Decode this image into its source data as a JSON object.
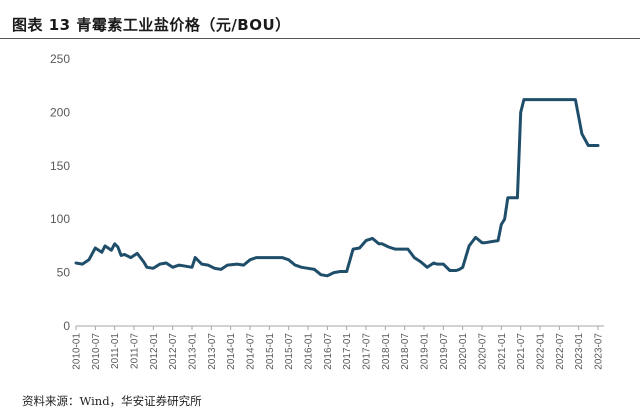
{
  "title": "图表 13 青霉素工业盐价格（元/BOU）",
  "source": "资料来源：Wind，华安证券研究所",
  "chart_data": {
    "type": "line",
    "title": "图表 13 青霉素工业盐价格（元/BOU）",
    "xlabel": "",
    "ylabel": "",
    "ylim": [
      0,
      250
    ],
    "yticks": [
      0,
      50,
      100,
      150,
      200,
      250
    ],
    "grid": false,
    "legend": "none",
    "line_color": "#1f4e6b",
    "x_ticks": [
      "2010-01",
      "2010-07",
      "2011-01",
      "2011-07",
      "2012-01",
      "2012-07",
      "2013-01",
      "2013-07",
      "2014-01",
      "2014-07",
      "2015-01",
      "2015-07",
      "2016-01",
      "2016-07",
      "2017-01",
      "2017-07",
      "2018-01",
      "2018-07",
      "2019-01",
      "2019-07",
      "2020-01",
      "2020-07",
      "2021-01",
      "2021-07",
      "2022-01",
      "2022-07",
      "2023-01",
      "2023-07"
    ],
    "x_range": [
      "2010-01",
      "2023-07"
    ],
    "series": [
      {
        "x": [
          "2010-01",
          "2010-03",
          "2010-05",
          "2010-07",
          "2010-09",
          "2010-10",
          "2010-12",
          "2011-01",
          "2011-02",
          "2011-03",
          "2011-04",
          "2011-06",
          "2011-08",
          "2011-10",
          "2011-11",
          "2012-01",
          "2012-03",
          "2012-05",
          "2012-07",
          "2012-09",
          "2012-11",
          "2013-01",
          "2013-02",
          "2013-04",
          "2013-06",
          "2013-08",
          "2013-10",
          "2013-12",
          "2014-03",
          "2014-05",
          "2014-07",
          "2014-09",
          "2014-11",
          "2015-01",
          "2015-03",
          "2015-05",
          "2015-07",
          "2015-09",
          "2015-11",
          "2016-01",
          "2016-03",
          "2016-05",
          "2016-07",
          "2016-09",
          "2016-11",
          "2017-01",
          "2017-03",
          "2017-05",
          "2017-07",
          "2017-09",
          "2017-11",
          "2017-12",
          "2018-02",
          "2018-04",
          "2018-06",
          "2018-08",
          "2018-10",
          "2018-12",
          "2019-02",
          "2019-04",
          "2019-05",
          "2019-07",
          "2019-09",
          "2019-11",
          "2019-12",
          "2020-01",
          "2020-03",
          "2020-05",
          "2020-07",
          "2020-08",
          "2020-10",
          "2020-12",
          "2021-01",
          "2021-02",
          "2021-03",
          "2021-04",
          "2021-06",
          "2021-07",
          "2021-08",
          "2021-09",
          "2021-10",
          "2021-12",
          "2022-01",
          "2022-03",
          "2022-05",
          "2022-07",
          "2022-09",
          "2022-11",
          "2022-12",
          "2023-02",
          "2023-04",
          "2023-06",
          "2023-07"
        ],
        "values": [
          59,
          58,
          62,
          73,
          69,
          75,
          71,
          77,
          74,
          66,
          67,
          64,
          68,
          60,
          55,
          54,
          58,
          59,
          55,
          57,
          56,
          55,
          64,
          58,
          57,
          54,
          53,
          57,
          58,
          57,
          62,
          64,
          64,
          64,
          64,
          64,
          62,
          57,
          55,
          54,
          53,
          48,
          47,
          50,
          51,
          51,
          72,
          73,
          80,
          82,
          77,
          77,
          74,
          72,
          72,
          72,
          64,
          60,
          55,
          59,
          58,
          58,
          52,
          52,
          53,
          55,
          75,
          83,
          78,
          78,
          79,
          80,
          95,
          100,
          120,
          120,
          120,
          200,
          212,
          212,
          212,
          212,
          212,
          212,
          212,
          212,
          212,
          212,
          212,
          180,
          169,
          169,
          169
        ]
      }
    ]
  }
}
